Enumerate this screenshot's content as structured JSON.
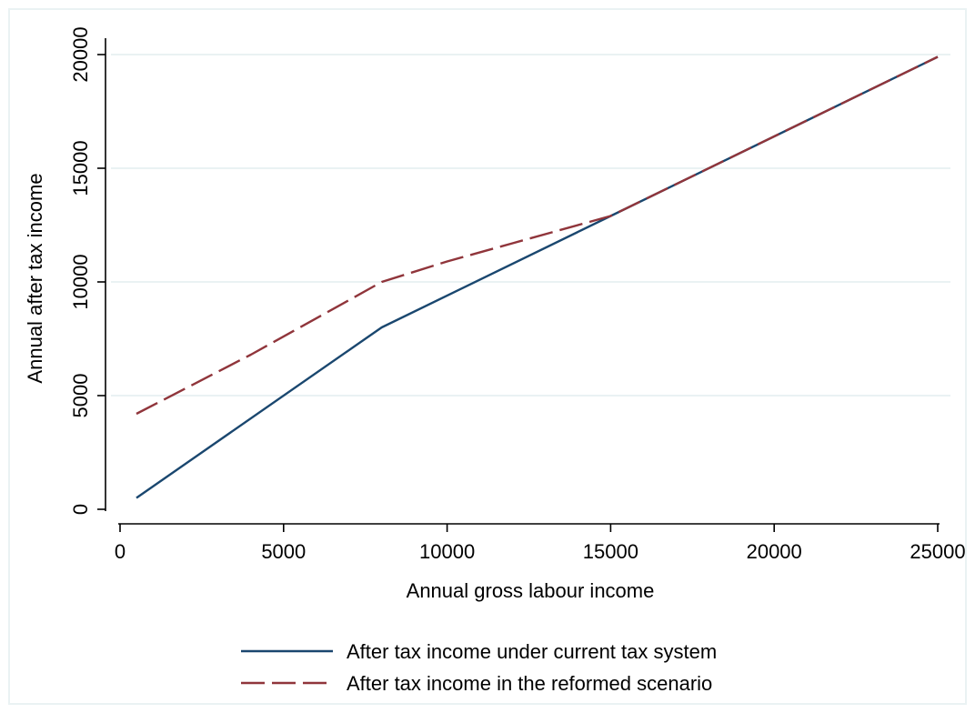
{
  "chart_data": {
    "type": "line",
    "title": "",
    "xlabel": "Annual gross labour income",
    "ylabel": "Annual after tax income",
    "xlim": [
      0,
      25000
    ],
    "ylim": [
      0,
      20000
    ],
    "x_ticks": [
      "0",
      "5000",
      "10000",
      "15000",
      "20000",
      "25000"
    ],
    "y_ticks": [
      "0",
      "5000",
      "10000",
      "15000",
      "20000"
    ],
    "grid": "horizontal",
    "legend_position": "bottom",
    "series": [
      {
        "name": "After tax income under current tax system",
        "color": "#1a476f",
        "style": "solid",
        "x": [
          500,
          8000,
          15000,
          25000
        ],
        "y": [
          500,
          8000,
          12900,
          19900
        ]
      },
      {
        "name": "After tax income in the reformed scenario",
        "color": "#90353b",
        "style": "dashed",
        "x": [
          500,
          4000,
          8000,
          10000,
          12000,
          15000,
          25000
        ],
        "y": [
          4200,
          6800,
          10000,
          10900,
          11700,
          12900,
          19900
        ]
      }
    ]
  }
}
